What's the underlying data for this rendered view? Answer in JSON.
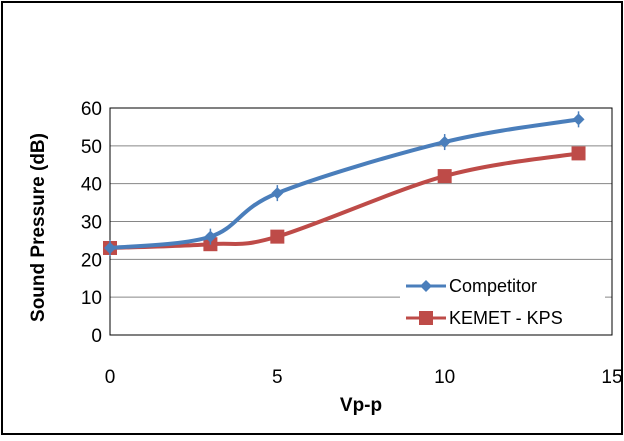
{
  "chart_data": {
    "type": "line",
    "title": "",
    "xlabel": "Vp-p",
    "ylabel": "Sound Pressure (dB)",
    "xlim": [
      0,
      15
    ],
    "ylim": [
      0,
      60
    ],
    "xticks": [
      "0",
      "5",
      "10",
      "15"
    ],
    "yticks": [
      "0",
      "10",
      "20",
      "30",
      "40",
      "50",
      "60"
    ],
    "grid": "horizontal",
    "legend_position": "bottom-right",
    "series": [
      {
        "name": "Competitor",
        "color": "#4a7ebb",
        "marker": "diamond",
        "smooth": true,
        "error_bars": true,
        "x": [
          0,
          3,
          5,
          10,
          14
        ],
        "y": [
          23,
          26,
          37.5,
          51,
          57
        ]
      },
      {
        "name": "KEMET - KPS",
        "color": "#be4b48",
        "marker": "square",
        "smooth": true,
        "x": [
          0,
          3,
          5,
          10,
          14
        ],
        "y": [
          23,
          24,
          26,
          42,
          48
        ]
      }
    ]
  }
}
